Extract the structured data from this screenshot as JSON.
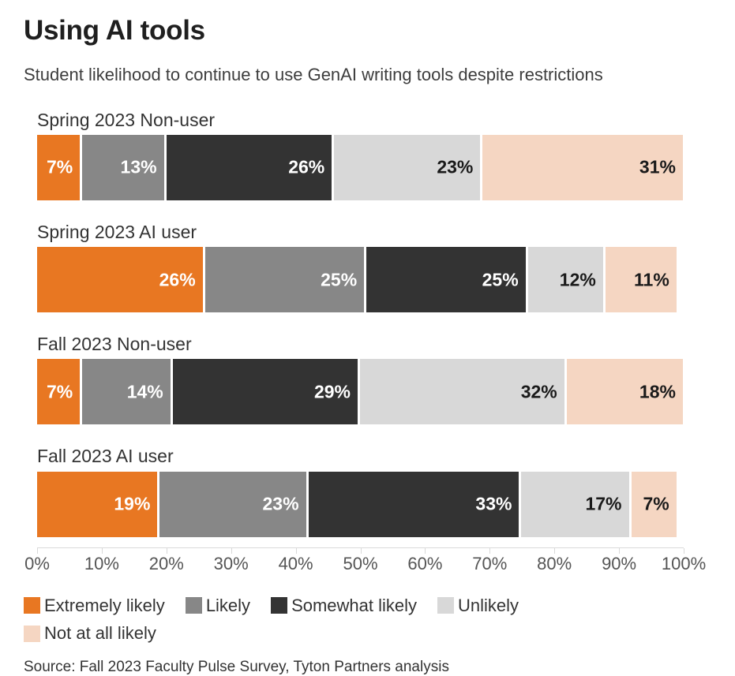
{
  "header": {
    "title": "Using AI tools",
    "subtitle": "Student likelihood to continue to use GenAI writing tools despite restrictions"
  },
  "chart_data": {
    "type": "bar",
    "orientation": "horizontal",
    "stacked": true,
    "unit": "%",
    "categories": [
      "Spring 2023 Non-user",
      "Spring 2023 AI user",
      "Fall 2023 Non-user",
      "Fall 2023 AI user"
    ],
    "series": [
      {
        "name": "Extremely likely",
        "color": "#E87722",
        "label_color": "#FFFFFF",
        "values": [
          7,
          26,
          7,
          19
        ]
      },
      {
        "name": "Likely",
        "color": "#878787",
        "label_color": "#FFFFFF",
        "values": [
          13,
          25,
          14,
          23
        ]
      },
      {
        "name": "Somewhat likely",
        "color": "#333333",
        "label_color": "#FFFFFF",
        "values": [
          26,
          25,
          29,
          33
        ]
      },
      {
        "name": "Unlikely",
        "color": "#D8D8D8",
        "label_color": "#1A1A1A",
        "values": [
          23,
          12,
          32,
          17
        ]
      },
      {
        "name": "Not at all likely",
        "color": "#F5D6C2",
        "label_color": "#1A1A1A",
        "values": [
          31,
          11,
          18,
          7
        ]
      }
    ],
    "xlim": [
      0,
      100
    ],
    "x_ticks": [
      "0%",
      "10%",
      "20%",
      "30%",
      "40%",
      "50%",
      "60%",
      "70%",
      "80%",
      "90%",
      "100%"
    ],
    "grid": false,
    "legend_position": "bottom"
  },
  "footer": {
    "source": "Source: Fall 2023 Faculty Pulse Survey, Tyton Partners analysis"
  }
}
